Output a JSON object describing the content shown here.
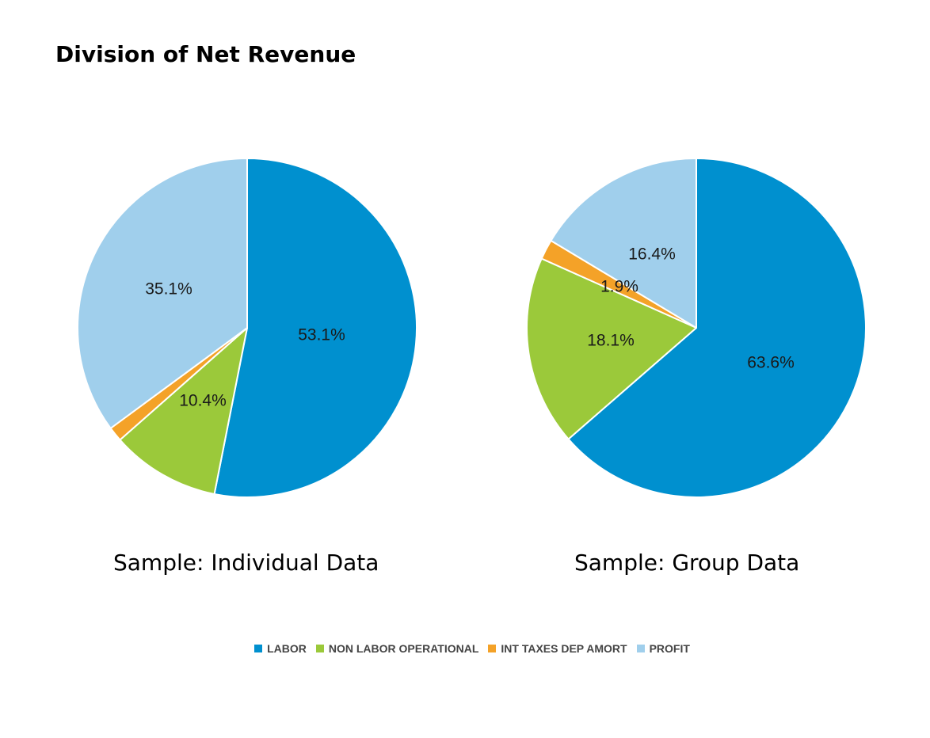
{
  "title": "Division of Net Revenue",
  "colors": {
    "LABOR": "#0090cf",
    "NON LABOR OPERATIONAL": "#9bc93a",
    "INT TAXES DEP AMORT": "#f4a228",
    "PROFIT": "#a0cfec"
  },
  "legend": [
    {
      "label": "LABOR",
      "color": "#0090cf"
    },
    {
      "label": "NON LABOR OPERATIONAL",
      "color": "#9bc93a"
    },
    {
      "label": "INT TAXES DEP AMORT",
      "color": "#f4a228"
    },
    {
      "label": "PROFIT",
      "color": "#a0cfec"
    }
  ],
  "chart_data": [
    {
      "type": "pie",
      "title": "Sample: Individual Data",
      "categories": [
        "LABOR",
        "NON LABOR OPERATIONAL",
        "INT TAXES DEP AMORT",
        "PROFIT"
      ],
      "values": [
        53.1,
        10.4,
        1.4,
        35.1
      ],
      "labels": [
        "53.1%",
        "10.4%",
        "",
        "35.1%"
      ],
      "start_angle": "12 o'clock",
      "direction": "clockwise"
    },
    {
      "type": "pie",
      "title": "Sample: Group Data",
      "categories": [
        "LABOR",
        "NON LABOR OPERATIONAL",
        "INT TAXES DEP AMORT",
        "PROFIT"
      ],
      "values": [
        63.6,
        18.1,
        1.9,
        16.4
      ],
      "labels": [
        "63.6%",
        "18.1%",
        "1.9%",
        "16.4%"
      ],
      "start_angle": "12 o'clock",
      "direction": "clockwise"
    }
  ]
}
